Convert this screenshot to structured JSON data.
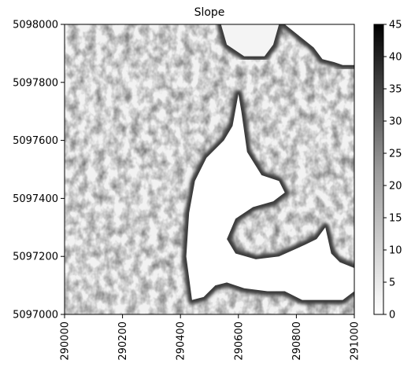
{
  "chart_data": {
    "type": "heatmap",
    "title": "Slope",
    "xlabel": "",
    "ylabel": "",
    "xlim": [
      290000,
      291000
    ],
    "ylim": [
      5097000,
      5098000
    ],
    "x_ticks": [
      290000,
      290200,
      290400,
      290600,
      290800,
      291000
    ],
    "y_ticks": [
      5097000,
      5097200,
      5097400,
      5097600,
      5097800,
      5098000
    ],
    "colorbar": {
      "range": [
        0,
        45
      ],
      "ticks": [
        0,
        5,
        10,
        15,
        20,
        25,
        30,
        35,
        40,
        45
      ],
      "colormap": "Greys"
    },
    "regions": [
      {
        "description": "flat central area",
        "slope": 0,
        "outline": [
          [
            290440,
            5097050
          ],
          [
            290420,
            5097200
          ],
          [
            290430,
            5097350
          ],
          [
            290450,
            5097460
          ],
          [
            290490,
            5097540
          ],
          [
            290550,
            5097600
          ],
          [
            290580,
            5097650
          ],
          [
            290600,
            5097760
          ],
          [
            290610,
            5097700
          ],
          [
            290630,
            5097560
          ],
          [
            290680,
            5097480
          ],
          [
            290740,
            5097460
          ],
          [
            290760,
            5097420
          ],
          [
            290720,
            5097390
          ],
          [
            290650,
            5097370
          ],
          [
            290590,
            5097330
          ],
          [
            290560,
            5097260
          ],
          [
            290590,
            5097210
          ],
          [
            290660,
            5097190
          ],
          [
            290740,
            5097200
          ],
          [
            290830,
            5097240
          ],
          [
            290870,
            5097260
          ],
          [
            290900,
            5097300
          ],
          [
            290920,
            5097210
          ],
          [
            290950,
            5097180
          ],
          [
            291000,
            5097160
          ],
          [
            291000,
            5097080
          ],
          [
            290960,
            5097050
          ],
          [
            290900,
            5097050
          ],
          [
            290820,
            5097050
          ],
          [
            290760,
            5097080
          ],
          [
            290700,
            5097080
          ],
          [
            290620,
            5097090
          ],
          [
            290560,
            5097110
          ],
          [
            290520,
            5097100
          ],
          [
            290480,
            5097060
          ]
        ]
      },
      {
        "description": "flat upper right area",
        "slope": 0,
        "outline": [
          [
            290760,
            5098000
          ],
          [
            290810,
            5097960
          ],
          [
            290860,
            5097920
          ],
          [
            290890,
            5097880
          ],
          [
            290930,
            5097870
          ],
          [
            290960,
            5097860
          ],
          [
            291000,
            5097860
          ],
          [
            291000,
            5098000
          ]
        ]
      },
      {
        "description": "flat upper middle patch",
        "slope": 2,
        "outline": [
          [
            290540,
            5098000
          ],
          [
            290560,
            5097930
          ],
          [
            290620,
            5097890
          ],
          [
            290690,
            5097890
          ],
          [
            290720,
            5097930
          ],
          [
            290740,
            5098000
          ]
        ]
      }
    ],
    "background_slope": 12
  }
}
